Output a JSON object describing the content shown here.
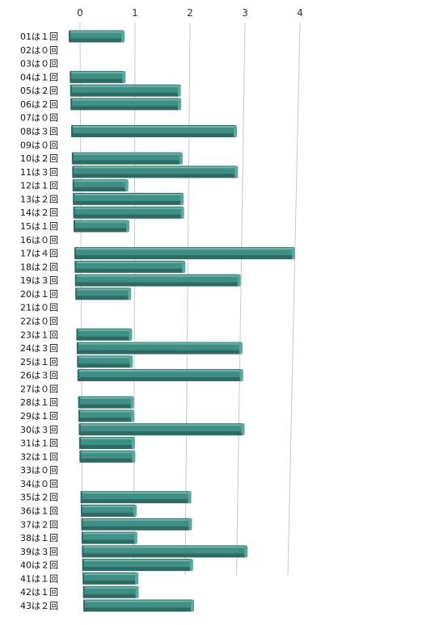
{
  "chart_data": {
    "type": "bar",
    "orientation": "horizontal",
    "axis_position": "top",
    "xlim": [
      0,
      4
    ],
    "x_ticks": [
      "0",
      "1",
      "2",
      "3",
      "4"
    ],
    "grid": true,
    "bar_color": "#3f8f84",
    "categories": [
      "01は１回",
      "02は０回",
      "03は０回",
      "04は１回",
      "05は２回",
      "06は２回",
      "07は０回",
      "08は３回",
      "09は０回",
      "10は２回",
      "11は３回",
      "12は１回",
      "13は２回",
      "14は２回",
      "15は１回",
      "16は０回",
      "17は４回",
      "18は２回",
      "19は３回",
      "20は１回",
      "21は０回",
      "22は０回",
      "23は１回",
      "24は３回",
      "25は１回",
      "26は３回",
      "27は０回",
      "28は１回",
      "29は１回",
      "30は３回",
      "31は１回",
      "32は１回",
      "33は０回",
      "34は０回",
      "35は２回",
      "36は１回",
      "37は２回",
      "38は１回",
      "39は３回",
      "40は２回",
      "41は１回",
      "42は１回",
      "43は２回"
    ],
    "values": [
      1,
      0,
      0,
      1,
      2,
      2,
      0,
      3,
      0,
      2,
      3,
      1,
      2,
      2,
      1,
      0,
      4,
      2,
      3,
      1,
      0,
      0,
      1,
      3,
      1,
      3,
      0,
      1,
      1,
      3,
      1,
      1,
      0,
      0,
      2,
      1,
      2,
      1,
      3,
      2,
      1,
      1,
      2
    ]
  }
}
